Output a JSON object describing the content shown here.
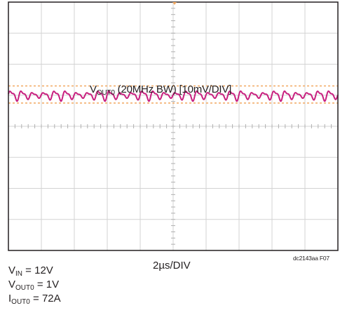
{
  "chart_data": {
    "type": "line",
    "title": "",
    "trace_label": {
      "main": "V",
      "sub": "OUT0",
      "rest": " (20MHz BW) [10mV/DIV]"
    },
    "timebase": "2µs/DIV",
    "figure_id": "dc2143aa F07",
    "grid": true,
    "divisions": {
      "x": 10,
      "y": 8
    },
    "x_unit": "µs",
    "y_unit": "mV",
    "xlim": [
      0,
      20
    ],
    "ylim": [
      -40,
      40
    ],
    "ripple": {
      "offset_mv": 10,
      "peak_to_peak_mv": 4,
      "period_us": 0.667,
      "limit_upper_mv": 13,
      "limit_lower_mv": 7.5
    },
    "series": [
      {
        "color": "#c8207f"
      }
    ],
    "limit_color": "#f2a860",
    "conditions": [
      {
        "main": "V",
        "sub": "IN",
        "rest": " = 12V"
      },
      {
        "main": "V",
        "sub": "OUT0",
        "rest": " = 1V"
      },
      {
        "main": "I",
        "sub": "OUT0",
        "rest": " = 72A"
      }
    ]
  }
}
